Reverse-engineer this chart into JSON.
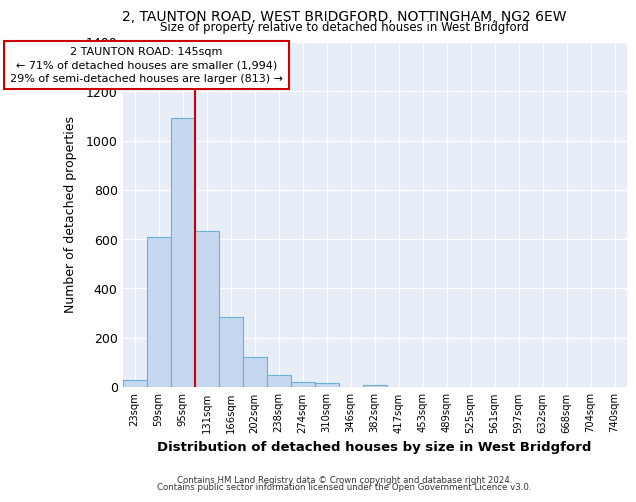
{
  "title_line1": "2, TAUNTON ROAD, WEST BRIDGFORD, NOTTINGHAM, NG2 6EW",
  "title_line2": "Size of property relative to detached houses in West Bridgford",
  "xlabel": "Distribution of detached houses by size in West Bridgford",
  "ylabel": "Number of detached properties",
  "categories": [
    "23sqm",
    "59sqm",
    "95sqm",
    "131sqm",
    "166sqm",
    "202sqm",
    "238sqm",
    "274sqm",
    "310sqm",
    "346sqm",
    "382sqm",
    "417sqm",
    "453sqm",
    "489sqm",
    "525sqm",
    "561sqm",
    "597sqm",
    "632sqm",
    "668sqm",
    "704sqm",
    "740sqm"
  ],
  "values": [
    30,
    610,
    1090,
    635,
    285,
    120,
    48,
    20,
    15,
    0,
    10,
    0,
    0,
    0,
    0,
    0,
    0,
    0,
    0,
    0,
    0
  ],
  "bar_color": "#c5d8f0",
  "bar_edge_color": "#6aaed6",
  "vline_color": "#cc0000",
  "vline_x_index": 3,
  "ylim": [
    0,
    1400
  ],
  "yticks": [
    0,
    200,
    400,
    600,
    800,
    1000,
    1200,
    1400
  ],
  "annotation_text": "2 TAUNTON ROAD: 145sqm\n← 71% of detached houses are smaller (1,994)\n29% of semi-detached houses are larger (813) →",
  "annotation_box_facecolor": "#ffffff",
  "annotation_box_edgecolor": "#cc0000",
  "footer_line1": "Contains HM Land Registry data © Crown copyright and database right 2024.",
  "footer_line2": "Contains public sector information licensed under the Open Government Licence v3.0.",
  "plot_bg_color": "#e8eef8",
  "grid_color": "#ffffff"
}
